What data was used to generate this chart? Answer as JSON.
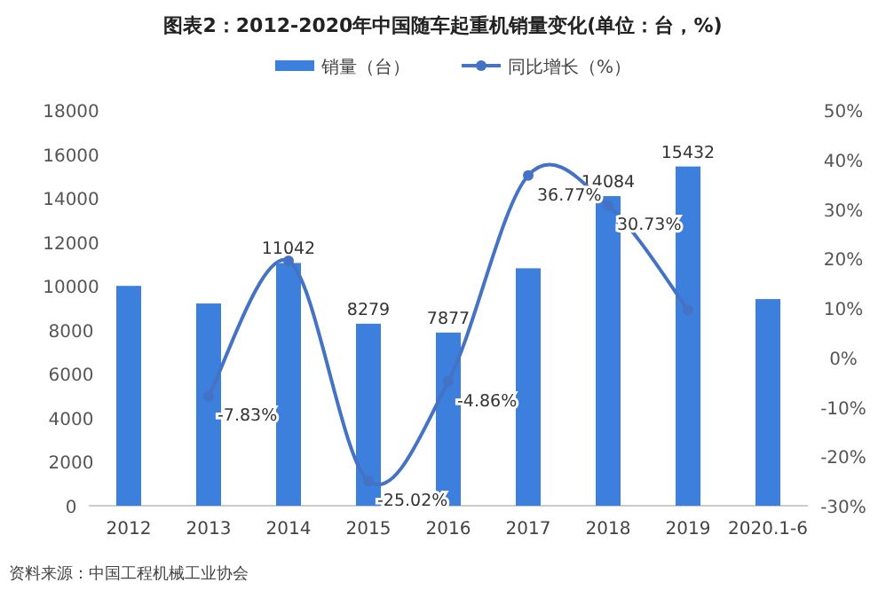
{
  "chart_data": {
    "type": "bar",
    "title": "图表2：2012-2020年中国随车起重机销量变化(单位：台，%)",
    "categories": [
      "2012",
      "2013",
      "2014",
      "2015",
      "2016",
      "2017",
      "2018",
      "2019",
      "2020.1-6"
    ],
    "series": [
      {
        "name": "销量（台）",
        "color": "#3c7fdc",
        "values": [
          10000,
          9200,
          11042,
          8279,
          7877,
          10800,
          14084,
          15432,
          9400
        ],
        "value_labels": [
          null,
          null,
          "11042",
          "8279",
          "7877",
          null,
          "14084",
          "15432",
          null
        ]
      },
      {
        "name": "同比增长（%）",
        "type": "line",
        "axis": "y2",
        "color": "#4472c4",
        "values": [
          null,
          -7.83,
          19.5,
          -25.02,
          -4.86,
          36.77,
          30.73,
          9.6,
          null
        ],
        "value_labels": [
          null,
          "-7.83%",
          null,
          "-25.02%",
          "-4.86%",
          "36.77%",
          "30.73%",
          null,
          null
        ]
      }
    ],
    "ylim": [
      0,
      18000
    ],
    "yticks": [
      0,
      2000,
      4000,
      6000,
      8000,
      10000,
      12000,
      14000,
      16000,
      18000
    ],
    "y2lim": [
      -30,
      50
    ],
    "y2ticks": [
      {
        "value": -30,
        "label": "-30%"
      },
      {
        "value": -20,
        "label": "-20%"
      },
      {
        "value": -10,
        "label": "-10%"
      },
      {
        "value": 0,
        "label": "0%"
      },
      {
        "value": 10,
        "label": "10%"
      },
      {
        "value": 20,
        "label": "20%"
      },
      {
        "value": 30,
        "label": "30%"
      },
      {
        "value": 40,
        "label": "40%"
      },
      {
        "value": 50,
        "label": "50%"
      }
    ],
    "marker": "circle",
    "legend": "top",
    "annotations": [
      "资料来源：中国工程机械工业协会"
    ]
  }
}
